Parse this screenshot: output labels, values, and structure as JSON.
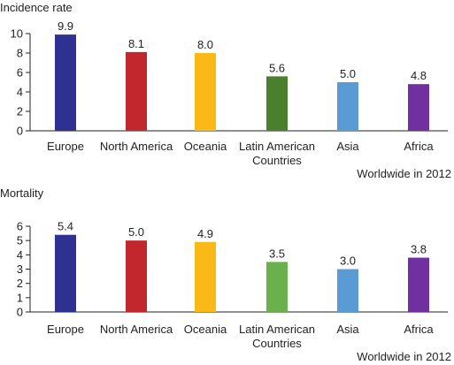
{
  "chart_data": [
    {
      "type": "bar",
      "ylabel": "Incidence rate",
      "note": "Worldwide in 2012",
      "categories": [
        [
          "Europe"
        ],
        [
          "North America"
        ],
        [
          "Oceania"
        ],
        [
          "Latin American",
          "Countries"
        ],
        [
          "Asia"
        ],
        [
          "Africa"
        ]
      ],
      "values": [
        9.9,
        8.1,
        8.0,
        5.6,
        5.0,
        4.8
      ],
      "value_labels": [
        "9.9",
        "8.1",
        "8.0",
        "5.6",
        "5.0",
        "4.8"
      ],
      "ylim": [
        0,
        10
      ],
      "yticks": [
        0,
        2,
        4,
        6,
        8,
        10
      ],
      "colors": [
        "#2e3192",
        "#c1272d",
        "#fbb917",
        "#4a7f2e",
        "#5b9bd5",
        "#7030a0"
      ],
      "grid": false,
      "legend": "none"
    },
    {
      "type": "bar",
      "ylabel": "Mortality",
      "note": "Worldwide in 2012",
      "categories": [
        [
          "Europe"
        ],
        [
          "North America"
        ],
        [
          "Oceania"
        ],
        [
          "Latin American",
          "Countries"
        ],
        [
          "Asia"
        ],
        [
          "Africa"
        ]
      ],
      "values": [
        5.4,
        5.0,
        4.9,
        3.5,
        3.0,
        3.8
      ],
      "value_labels": [
        "5.4",
        "5.0",
        "4.9",
        "3.5",
        "3.0",
        "3.8"
      ],
      "ylim": [
        0,
        6
      ],
      "yticks": [
        0,
        1,
        2,
        3,
        4,
        5,
        6
      ],
      "colors": [
        "#2e3192",
        "#c1272d",
        "#fbb917",
        "#6ab04c",
        "#5b9bd5",
        "#7030a0"
      ],
      "grid": false,
      "legend": "none"
    }
  ]
}
